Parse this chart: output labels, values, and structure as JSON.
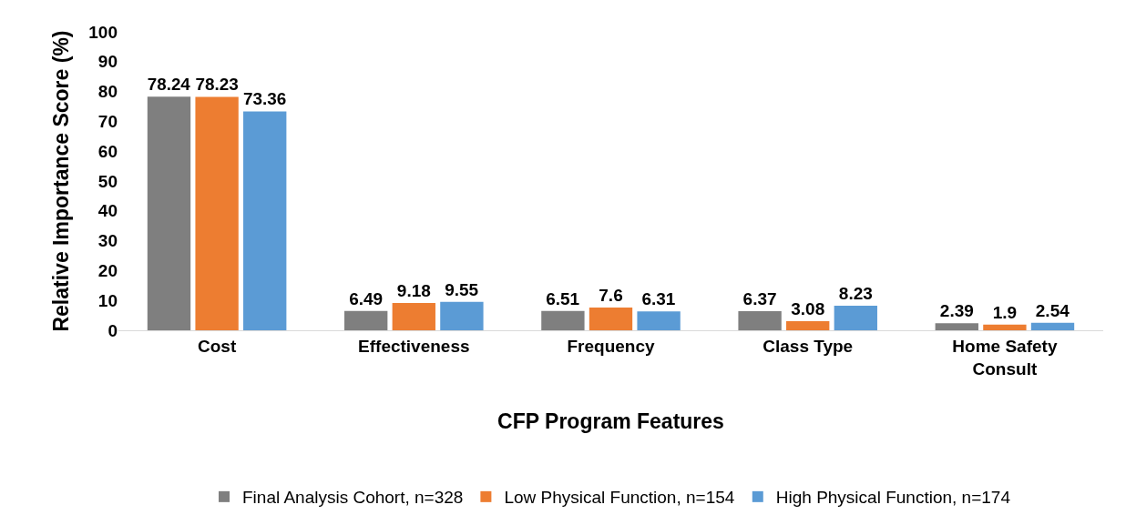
{
  "chart_data": {
    "type": "bar",
    "xlabel": "CFP Program Features",
    "ylabel": "Relative Importance Score (%)",
    "categories": [
      "Cost",
      "Effectiveness",
      "Frequency",
      "Class Type",
      "Home Safety Consult"
    ],
    "series": [
      {
        "name": "Final Analysis Cohort, n=328",
        "color": "#7f7f7f",
        "values": [
          78.24,
          6.49,
          6.51,
          6.37,
          2.39
        ]
      },
      {
        "name": "Low Physical Function, n=154",
        "color": "#ed7d31",
        "values": [
          78.23,
          9.18,
          7.6,
          3.08,
          1.9
        ]
      },
      {
        "name": "High Physical Function, n=174",
        "color": "#5b9bd5",
        "values": [
          73.36,
          9.55,
          6.31,
          8.23,
          2.54
        ]
      }
    ],
    "ylim": [
      0,
      100
    ],
    "yticks": [
      0,
      10,
      20,
      30,
      40,
      50,
      60,
      70,
      80,
      90,
      100
    ],
    "data_labels": true,
    "grid": false,
    "legend": "bottom"
  }
}
